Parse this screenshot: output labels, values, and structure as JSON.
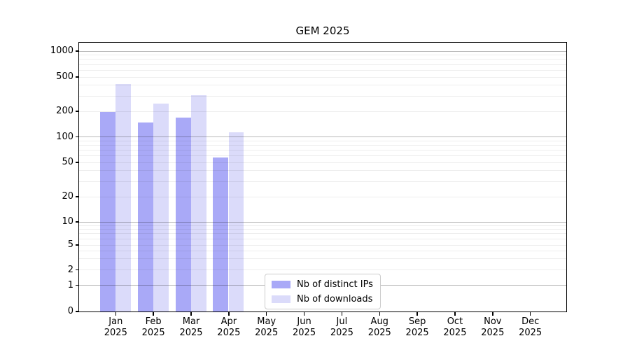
{
  "title": "GEM 2025",
  "chart_data": {
    "type": "bar",
    "title": "GEM 2025",
    "categories": [
      "Jan 2025",
      "Feb 2025",
      "Mar 2025",
      "Apr 2025",
      "May 2025",
      "Jun 2025",
      "Jul 2025",
      "Aug 2025",
      "Sep 2025",
      "Oct 2025",
      "Nov 2025",
      "Dec 2025"
    ],
    "series": [
      {
        "name": "Nb of distinct IPs",
        "color": "#a9a9f7",
        "values": [
          200,
          148,
          170,
          58,
          0,
          0,
          0,
          0,
          0,
          0,
          0,
          0
        ]
      },
      {
        "name": "Nb of downloads",
        "color": "#dbdbfa",
        "values": [
          415,
          250,
          310,
          115,
          0,
          0,
          0,
          0,
          0,
          0,
          0,
          0
        ]
      }
    ],
    "xlabel": "",
    "ylabel": "",
    "yscale": "log-like (compressed below 10, linear 0-1)",
    "ylim": [
      0,
      1200
    ],
    "y_ticks": [
      0,
      1,
      2,
      5,
      10,
      20,
      50,
      100,
      200,
      500,
      1000
    ],
    "grid": "horizontal major (powers of 10, gray) + minor (faint), drawn over bars",
    "legend_position": "lower center"
  },
  "y_axis": {
    "tick_labels": [
      "1000",
      "500",
      "200",
      "100",
      "50",
      "20",
      "10",
      "5",
      "2",
      "1",
      "0"
    ]
  },
  "x_axis": {
    "months": [
      "Jan",
      "Feb",
      "Mar",
      "Apr",
      "May",
      "Jun",
      "Jul",
      "Aug",
      "Sep",
      "Oct",
      "Nov",
      "Dec"
    ],
    "year": "2025"
  },
  "legend": {
    "items": [
      {
        "label": "Nb of distinct IPs",
        "color": "#a9a9f7"
      },
      {
        "label": "Nb of downloads",
        "color": "#dbdbfa"
      }
    ]
  },
  "colors": {
    "background": "#ffffff",
    "spine": "#000000",
    "major_grid": "rgba(0,0,0,0.28)",
    "minor_grid": "rgba(0,0,0,0.07)",
    "text": "#000000"
  }
}
